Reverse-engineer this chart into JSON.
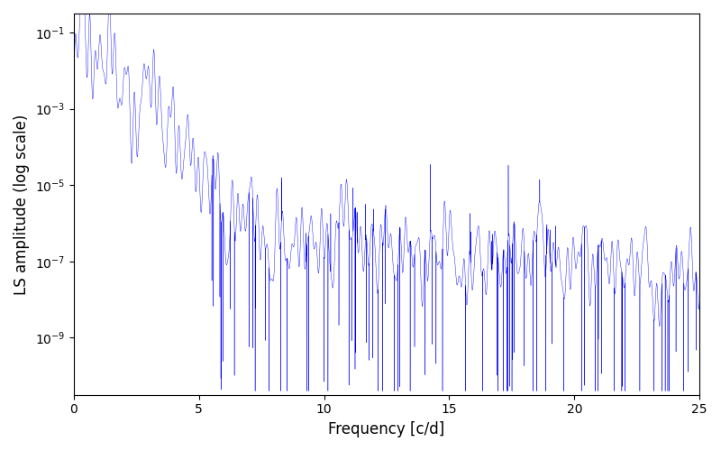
{
  "title": "",
  "xlabel": "Frequency [c/d]",
  "ylabel": "LS amplitude (log scale)",
  "line_color": "#0000ff",
  "xlim": [
    0,
    25
  ],
  "ylim_log": [
    -10.5,
    -0.5
  ],
  "figsize": [
    8.0,
    5.0
  ],
  "dpi": 100,
  "seed": 12345,
  "n_points": 50000,
  "freq_max": 25.0,
  "background_color": "#ffffff",
  "linewidth": 0.3
}
